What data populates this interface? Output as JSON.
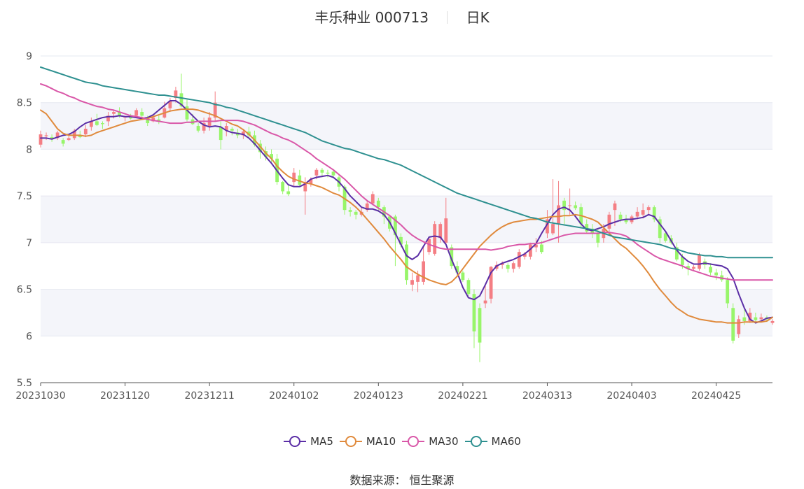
{
  "header": {
    "stock_name": "丰乐种业 000713",
    "period": "日K"
  },
  "source": "数据来源： 恒生聚源",
  "colors": {
    "up": "#f47e84",
    "down": "#98f56a",
    "ma5": "#5b2ea6",
    "ma10": "#e08a3c",
    "ma30": "#d957a8",
    "ma60": "#2e9090",
    "band": "#f4f5fa",
    "grid": "#e6e8f0"
  },
  "chart_data": {
    "type": "candlestick",
    "title": "丰乐种业 000713",
    "period": "日K",
    "ylim": [
      5.5,
      9
    ],
    "yticks": [
      "9",
      "8.5",
      "8",
      "7.5",
      "7",
      "6.5",
      "6",
      "5.5"
    ],
    "ytick_values": [
      9,
      8.5,
      8,
      7.5,
      7,
      6.5,
      6,
      5.5
    ],
    "grid": true,
    "legend_position": "bottom",
    "xtick_labels": [
      "20231030",
      "20231120",
      "20231211",
      "20240102",
      "20240123",
      "20240221",
      "20240313",
      "20240403",
      "20240425"
    ],
    "xtick_index": [
      0,
      15,
      30,
      45,
      60,
      75,
      90,
      105,
      120
    ],
    "candles": [
      [
        8.05,
        8.16,
        8.02,
        8.2
      ],
      [
        8.14,
        8.15,
        8.1,
        8.18
      ],
      [
        8.13,
        8.11,
        8.08,
        8.16
      ],
      [
        8.12,
        8.18,
        8.1,
        8.2
      ],
      [
        8.1,
        8.06,
        8.03,
        8.12
      ],
      [
        8.1,
        8.12,
        8.09,
        8.14
      ],
      [
        8.12,
        8.2,
        8.1,
        8.22
      ],
      [
        8.15,
        8.13,
        8.12,
        8.2
      ],
      [
        8.16,
        8.22,
        8.13,
        8.26
      ],
      [
        8.24,
        8.3,
        8.2,
        8.34
      ],
      [
        8.3,
        8.26,
        8.25,
        8.38
      ],
      [
        8.28,
        8.27,
        8.22,
        8.3
      ],
      [
        8.3,
        8.36,
        8.25,
        8.4
      ],
      [
        8.38,
        8.4,
        8.33,
        8.42
      ],
      [
        8.4,
        8.36,
        8.34,
        8.45
      ],
      [
        8.34,
        8.35,
        8.3,
        8.36
      ],
      [
        8.35,
        8.33,
        8.32,
        8.38
      ],
      [
        8.36,
        8.42,
        8.34,
        8.44
      ],
      [
        8.4,
        8.36,
        8.33,
        8.44
      ],
      [
        8.32,
        8.28,
        8.25,
        8.36
      ],
      [
        8.3,
        8.34,
        8.29,
        8.36
      ],
      [
        8.32,
        8.3,
        8.27,
        8.36
      ],
      [
        8.34,
        8.44,
        8.33,
        8.51
      ],
      [
        8.44,
        8.52,
        8.4,
        8.55
      ],
      [
        8.55,
        8.63,
        8.5,
        8.67
      ],
      [
        8.6,
        8.46,
        8.45,
        8.81
      ],
      [
        8.46,
        8.32,
        8.3,
        8.53
      ],
      [
        8.32,
        8.27,
        8.26,
        8.38
      ],
      [
        8.25,
        8.2,
        8.18,
        8.28
      ],
      [
        8.2,
        8.28,
        8.17,
        8.34
      ],
      [
        8.25,
        8.34,
        8.2,
        8.4
      ],
      [
        8.34,
        8.5,
        8.3,
        8.62
      ],
      [
        8.24,
        8.1,
        8.0,
        8.3
      ],
      [
        8.2,
        8.25,
        8.14,
        8.28
      ],
      [
        8.22,
        8.2,
        8.15,
        8.24
      ],
      [
        8.18,
        8.15,
        8.12,
        8.22
      ],
      [
        8.15,
        8.19,
        8.11,
        8.22
      ],
      [
        8.19,
        8.15,
        8.12,
        8.24
      ],
      [
        8.15,
        8.05,
        8.03,
        8.2
      ],
      [
        8.06,
        7.97,
        7.9,
        8.1
      ],
      [
        7.98,
        7.92,
        7.88,
        8.03
      ],
      [
        7.95,
        7.9,
        7.86,
        8.0
      ],
      [
        7.9,
        7.65,
        7.62,
        7.95
      ],
      [
        7.65,
        7.55,
        7.52,
        7.66
      ],
      [
        7.55,
        7.52,
        7.5,
        7.62
      ],
      [
        7.65,
        7.75,
        7.6,
        7.8
      ],
      [
        7.72,
        7.62,
        7.6,
        7.78
      ],
      [
        7.55,
        7.65,
        7.3,
        7.7
      ],
      [
        7.63,
        7.68,
        7.6,
        7.7
      ],
      [
        7.72,
        7.78,
        7.68,
        7.8
      ],
      [
        7.78,
        7.75,
        7.7,
        7.8
      ],
      [
        7.75,
        7.74,
        7.7,
        7.78
      ],
      [
        7.76,
        7.72,
        7.7,
        7.78
      ],
      [
        7.7,
        7.6,
        7.55,
        7.72
      ],
      [
        7.6,
        7.35,
        7.3,
        7.62
      ],
      [
        7.35,
        7.33,
        7.28,
        7.38
      ],
      [
        7.33,
        7.3,
        7.25,
        7.35
      ],
      [
        7.3,
        7.33,
        7.28,
        7.38
      ],
      [
        7.35,
        7.42,
        7.33,
        7.45
      ],
      [
        7.42,
        7.52,
        7.4,
        7.55
      ],
      [
        7.45,
        7.38,
        7.33,
        7.48
      ],
      [
        7.38,
        7.28,
        7.2,
        7.4
      ],
      [
        7.28,
        7.15,
        7.12,
        7.3
      ],
      [
        7.28,
        7.08,
        6.75,
        7.3
      ],
      [
        7.06,
        6.98,
        6.95,
        7.1
      ],
      [
        6.98,
        6.6,
        6.55,
        7.02
      ],
      [
        6.55,
        6.6,
        6.48,
        6.68
      ],
      [
        6.58,
        6.65,
        6.47,
        6.7
      ],
      [
        6.58,
        6.8,
        6.55,
        6.95
      ],
      [
        6.9,
        7.04,
        6.87,
        7.06
      ],
      [
        6.88,
        7.2,
        6.86,
        7.23
      ],
      [
        7.05,
        7.2,
        7.0,
        7.22
      ],
      [
        7.0,
        7.26,
        6.98,
        7.48
      ],
      [
        6.95,
        6.75,
        6.72,
        6.98
      ],
      [
        6.75,
        6.68,
        6.65,
        6.8
      ],
      [
        6.68,
        6.6,
        6.58,
        6.7
      ],
      [
        6.6,
        6.45,
        6.43,
        6.62
      ],
      [
        6.45,
        6.05,
        5.87,
        6.5
      ],
      [
        6.3,
        5.93,
        5.72,
        6.35
      ],
      [
        6.35,
        6.38,
        6.3,
        6.55
      ],
      [
        6.4,
        6.74,
        6.35,
        6.75
      ],
      [
        6.72,
        6.76,
        6.7,
        6.8
      ],
      [
        6.76,
        6.78,
        6.72,
        6.8
      ],
      [
        6.76,
        6.72,
        6.68,
        6.78
      ],
      [
        6.72,
        6.78,
        6.68,
        6.8
      ],
      [
        6.74,
        6.9,
        6.72,
        6.93
      ],
      [
        6.85,
        6.88,
        6.82,
        6.9
      ],
      [
        6.85,
        6.98,
        6.82,
        7.0
      ],
      [
        6.95,
        6.98,
        6.9,
        7.05
      ],
      [
        6.98,
        6.9,
        6.88,
        7.02
      ],
      [
        7.1,
        7.25,
        7.05,
        7.35
      ],
      [
        7.1,
        7.2,
        7.08,
        7.68
      ],
      [
        7.2,
        7.4,
        7.0,
        7.66
      ],
      [
        7.45,
        7.35,
        7.2,
        7.48
      ],
      [
        7.4,
        7.4,
        7.3,
        7.58
      ],
      [
        7.4,
        7.37,
        7.35,
        7.44
      ],
      [
        7.38,
        7.2,
        7.17,
        7.42
      ],
      [
        7.2,
        7.12,
        7.1,
        7.25
      ],
      [
        7.15,
        7.1,
        7.05,
        7.2
      ],
      [
        7.1,
        7.0,
        6.95,
        7.15
      ],
      [
        7.05,
        7.15,
        7.0,
        7.2
      ],
      [
        7.15,
        7.3,
        7.12,
        7.33
      ],
      [
        7.35,
        7.42,
        7.18,
        7.45
      ],
      [
        7.3,
        7.25,
        7.22,
        7.33
      ],
      [
        7.25,
        7.22,
        7.2,
        7.3
      ],
      [
        7.22,
        7.28,
        7.2,
        7.3
      ],
      [
        7.28,
        7.33,
        7.25,
        7.38
      ],
      [
        7.3,
        7.35,
        7.26,
        7.42
      ],
      [
        7.35,
        7.38,
        7.3,
        7.4
      ],
      [
        7.38,
        7.25,
        7.22,
        7.4
      ],
      [
        7.25,
        7.05,
        7.0,
        7.28
      ],
      [
        7.1,
        7.02,
        7.0,
        7.12
      ],
      [
        7.05,
        7.0,
        6.98,
        7.08
      ],
      [
        6.95,
        6.82,
        6.8,
        7.0
      ],
      [
        6.85,
        6.76,
        6.72,
        6.88
      ],
      [
        6.75,
        6.72,
        6.65,
        6.78
      ],
      [
        6.72,
        6.74,
        6.7,
        6.76
      ],
      [
        6.72,
        6.87,
        6.7,
        6.89
      ],
      [
        6.8,
        6.76,
        6.72,
        6.83
      ],
      [
        6.74,
        6.68,
        6.65,
        6.78
      ],
      [
        6.68,
        6.65,
        6.6,
        6.72
      ],
      [
        6.65,
        6.6,
        6.58,
        6.7
      ],
      [
        6.6,
        6.35,
        6.3,
        6.63
      ],
      [
        6.3,
        5.95,
        5.92,
        6.35
      ],
      [
        6.02,
        6.18,
        5.98,
        6.22
      ],
      [
        6.2,
        6.16,
        6.12,
        6.28
      ],
      [
        6.16,
        6.25,
        6.14,
        6.3
      ],
      [
        6.2,
        6.17,
        6.15,
        6.25
      ],
      [
        6.18,
        6.2,
        6.15,
        6.24
      ],
      [
        6.2,
        6.18,
        6.15,
        6.22
      ],
      [
        6.14,
        6.16,
        6.12,
        6.18
      ]
    ],
    "series": [
      {
        "name": "MA5",
        "values": [
          8.12,
          8.12,
          8.11,
          8.13,
          8.15,
          8.16,
          8.19,
          8.24,
          8.28,
          8.3,
          8.32,
          8.34,
          8.35,
          8.35,
          8.36,
          8.35,
          8.35,
          8.34,
          8.33,
          8.34,
          8.37,
          8.42,
          8.47,
          8.52,
          8.52,
          8.48,
          8.42,
          8.36,
          8.3,
          8.26,
          8.24,
          8.25,
          8.24,
          8.2,
          8.18,
          8.17,
          8.16,
          8.12,
          8.06,
          7.99,
          7.92,
          7.85,
          7.77,
          7.69,
          7.62,
          7.6,
          7.6,
          7.63,
          7.68,
          7.7,
          7.71,
          7.72,
          7.7,
          7.65,
          7.58,
          7.5,
          7.44,
          7.38,
          7.36,
          7.36,
          7.34,
          7.3,
          7.22,
          7.1,
          6.98,
          6.86,
          6.82,
          6.86,
          6.96,
          7.06,
          7.07,
          7.06,
          6.98,
          6.82,
          6.68,
          6.52,
          6.41,
          6.39,
          6.43,
          6.55,
          6.68,
          6.75,
          6.78,
          6.8,
          6.82,
          6.85,
          6.88,
          6.93,
          6.99,
          7.1,
          7.2,
          7.3,
          7.36,
          7.38,
          7.35,
          7.28,
          7.2,
          7.14,
          7.13,
          7.15,
          7.17,
          7.2,
          7.22,
          7.24,
          7.25,
          7.25,
          7.26,
          7.27,
          7.3,
          7.28,
          7.2,
          7.12,
          7.02,
          6.92,
          6.85,
          6.8,
          6.77,
          6.77,
          6.78,
          6.77,
          6.76,
          6.75,
          6.72,
          6.62,
          6.45,
          6.3,
          6.18,
          6.14,
          6.16,
          6.19,
          6.2
        ]
      },
      {
        "name": "MA10",
        "values": [
          8.42,
          8.38,
          8.3,
          8.22,
          8.17,
          8.15,
          8.15,
          8.15,
          8.14,
          8.15,
          8.18,
          8.2,
          8.22,
          8.24,
          8.26,
          8.28,
          8.3,
          8.31,
          8.32,
          8.33,
          8.35,
          8.37,
          8.39,
          8.41,
          8.42,
          8.43,
          8.43,
          8.43,
          8.42,
          8.4,
          8.38,
          8.36,
          8.33,
          8.3,
          8.27,
          8.25,
          8.21,
          8.16,
          8.1,
          8.03,
          7.96,
          7.9,
          7.82,
          7.76,
          7.71,
          7.68,
          7.66,
          7.64,
          7.63,
          7.61,
          7.59,
          7.56,
          7.53,
          7.51,
          7.47,
          7.43,
          7.38,
          7.32,
          7.25,
          7.18,
          7.11,
          7.04,
          6.96,
          6.89,
          6.82,
          6.74,
          6.7,
          6.66,
          6.63,
          6.6,
          6.58,
          6.56,
          6.55,
          6.58,
          6.64,
          6.72,
          6.8,
          6.88,
          6.96,
          7.02,
          7.08,
          7.13,
          7.17,
          7.2,
          7.22,
          7.23,
          7.24,
          7.25,
          7.25,
          7.26,
          7.27,
          7.28,
          7.28,
          7.29,
          7.29,
          7.3,
          7.29,
          7.27,
          7.25,
          7.22,
          7.16,
          7.1,
          7.04,
          6.98,
          6.94,
          6.88,
          6.82,
          6.75,
          6.67,
          6.58,
          6.5,
          6.43,
          6.36,
          6.3,
          6.26,
          6.22,
          6.2,
          6.18,
          6.17,
          6.16,
          6.15,
          6.15,
          6.14,
          6.14,
          6.14,
          6.15,
          6.15,
          6.15,
          6.15,
          6.16,
          6.2
        ]
      },
      {
        "name": "MA30",
        "values": [
          8.7,
          8.68,
          8.65,
          8.62,
          8.6,
          8.57,
          8.55,
          8.52,
          8.5,
          8.48,
          8.46,
          8.45,
          8.43,
          8.42,
          8.4,
          8.38,
          8.36,
          8.35,
          8.34,
          8.32,
          8.31,
          8.3,
          8.29,
          8.28,
          8.28,
          8.28,
          8.29,
          8.29,
          8.3,
          8.3,
          8.3,
          8.3,
          8.31,
          8.31,
          8.31,
          8.31,
          8.3,
          8.28,
          8.26,
          8.23,
          8.2,
          8.17,
          8.15,
          8.12,
          8.1,
          8.07,
          8.03,
          7.99,
          7.95,
          7.9,
          7.86,
          7.82,
          7.78,
          7.73,
          7.68,
          7.62,
          7.56,
          7.5,
          7.45,
          7.41,
          7.37,
          7.33,
          7.29,
          7.24,
          7.19,
          7.13,
          7.08,
          7.04,
          7.01,
          6.98,
          6.96,
          6.94,
          6.93,
          6.93,
          6.93,
          6.93,
          6.93,
          6.93,
          6.93,
          6.93,
          6.92,
          6.93,
          6.94,
          6.96,
          6.97,
          6.98,
          6.98,
          6.99,
          6.99,
          7.0,
          7.02,
          7.04,
          7.06,
          7.08,
          7.09,
          7.1,
          7.1,
          7.1,
          7.1,
          7.1,
          7.11,
          7.11,
          7.1,
          7.09,
          7.07,
          7.03,
          6.98,
          6.94,
          6.9,
          6.86,
          6.83,
          6.81,
          6.79,
          6.77,
          6.75,
          6.72,
          6.7,
          6.68,
          6.66,
          6.64,
          6.63,
          6.62,
          6.61,
          6.6,
          6.6,
          6.6,
          6.6,
          6.6,
          6.6,
          6.6,
          6.6
        ]
      },
      {
        "name": "MA60",
        "values": [
          8.88,
          8.86,
          8.84,
          8.82,
          8.8,
          8.78,
          8.76,
          8.74,
          8.72,
          8.71,
          8.7,
          8.68,
          8.67,
          8.66,
          8.65,
          8.64,
          8.63,
          8.62,
          8.61,
          8.6,
          8.59,
          8.58,
          8.58,
          8.57,
          8.56,
          8.55,
          8.54,
          8.53,
          8.52,
          8.51,
          8.5,
          8.48,
          8.47,
          8.45,
          8.44,
          8.42,
          8.4,
          8.38,
          8.36,
          8.34,
          8.32,
          8.3,
          8.28,
          8.26,
          8.24,
          8.22,
          8.2,
          8.18,
          8.15,
          8.12,
          8.09,
          8.07,
          8.05,
          8.03,
          8.01,
          8.0,
          7.98,
          7.96,
          7.94,
          7.92,
          7.9,
          7.89,
          7.87,
          7.85,
          7.83,
          7.8,
          7.77,
          7.74,
          7.71,
          7.68,
          7.65,
          7.62,
          7.59,
          7.56,
          7.53,
          7.51,
          7.49,
          7.47,
          7.45,
          7.43,
          7.41,
          7.39,
          7.37,
          7.35,
          7.33,
          7.31,
          7.29,
          7.27,
          7.26,
          7.24,
          7.22,
          7.21,
          7.2,
          7.19,
          7.18,
          7.17,
          7.16,
          7.15,
          7.14,
          7.12,
          7.1,
          7.08,
          7.06,
          7.05,
          7.04,
          7.03,
          7.02,
          7.01,
          7.0,
          6.99,
          6.98,
          6.96,
          6.94,
          6.93,
          6.91,
          6.89,
          6.88,
          6.87,
          6.86,
          6.86,
          6.85,
          6.85,
          6.84,
          6.84,
          6.84,
          6.84,
          6.84,
          6.84,
          6.84,
          6.84,
          6.84
        ]
      }
    ]
  }
}
